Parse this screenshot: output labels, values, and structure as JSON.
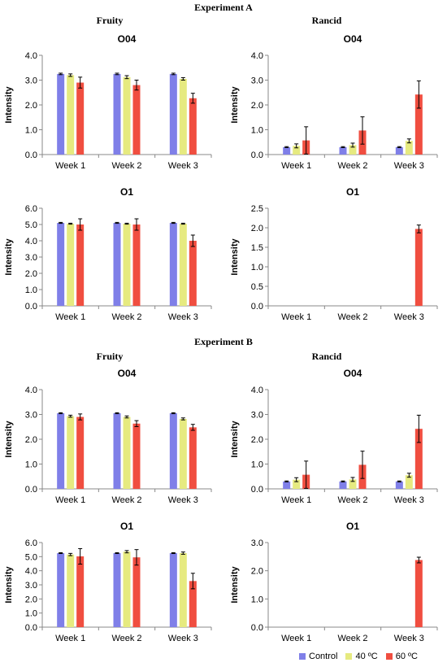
{
  "experiments": [
    {
      "title": "Experiment A",
      "fruity_title": "Fruity",
      "rancid_title": "Rancid"
    },
    {
      "title": "Experiment B",
      "fruity_title": "Fruity",
      "rancid_title": "Rancid"
    }
  ],
  "legend": [
    {
      "label": "Control",
      "color": "#7f7fe8"
    },
    {
      "label": "40 ºC",
      "color": "#e6ea80"
    },
    {
      "label": "60 ºC",
      "color": "#f04e40"
    }
  ],
  "chart_data": [
    {
      "type": "bar",
      "experiment": "Experiment A",
      "attribute": "Fruity",
      "title": "O04",
      "ylabel": "Intensity",
      "ylim": [
        0,
        4
      ],
      "yticks": [
        "0.0",
        "1.0",
        "2.0",
        "3.0",
        "4.0"
      ],
      "categories": [
        "Week 1",
        "Week 2",
        "Week 3"
      ],
      "series": [
        {
          "name": "Control",
          "values": [
            3.25,
            3.25,
            3.25
          ],
          "errors": [
            0.03,
            0.03,
            0.03
          ]
        },
        {
          "name": "40 ºC",
          "values": [
            3.2,
            3.12,
            3.05
          ],
          "errors": [
            0.05,
            0.06,
            0.05
          ]
        },
        {
          "name": "60 ºC",
          "values": [
            2.9,
            2.8,
            2.27
          ],
          "errors": [
            0.22,
            0.2,
            0.2
          ]
        }
      ]
    },
    {
      "type": "bar",
      "experiment": "Experiment A",
      "attribute": "Rancid",
      "title": "O04",
      "ylabel": "Intensity",
      "ylim": [
        0,
        4
      ],
      "yticks": [
        "0.0",
        "1.0",
        "2.0",
        "3.0",
        "4.0"
      ],
      "categories": [
        "Week 1",
        "Week 2",
        "Week 3"
      ],
      "series": [
        {
          "name": "Control",
          "values": [
            0.3,
            0.3,
            0.3
          ],
          "errors": [
            0.02,
            0.02,
            0.02
          ]
        },
        {
          "name": "40 ºC",
          "values": [
            0.35,
            0.38,
            0.55
          ],
          "errors": [
            0.08,
            0.08,
            0.08
          ]
        },
        {
          "name": "60 ºC",
          "values": [
            0.57,
            0.97,
            2.42
          ],
          "errors": [
            0.55,
            0.55,
            0.55
          ]
        }
      ]
    },
    {
      "type": "bar",
      "experiment": "Experiment A",
      "attribute": "Fruity",
      "title": "O1",
      "ylabel": "Intensity",
      "ylim": [
        0,
        6
      ],
      "yticks": [
        "0.0",
        "1.0",
        "2.0",
        "3.0",
        "4.0",
        "5.0",
        "6.0"
      ],
      "categories": [
        "Week 1",
        "Week 2",
        "Week 3"
      ],
      "series": [
        {
          "name": "Control",
          "values": [
            5.1,
            5.1,
            5.1
          ],
          "errors": [
            0.03,
            0.03,
            0.03
          ]
        },
        {
          "name": "40 ºC",
          "values": [
            5.05,
            5.05,
            5.05
          ],
          "errors": [
            0.03,
            0.03,
            0.03
          ]
        },
        {
          "name": "60 ºC",
          "values": [
            5.0,
            5.0,
            4.0
          ],
          "errors": [
            0.35,
            0.35,
            0.35
          ]
        }
      ]
    },
    {
      "type": "bar",
      "experiment": "Experiment A",
      "attribute": "Rancid",
      "title": "O1",
      "ylabel": "Intensity",
      "ylim": [
        0,
        2.5
      ],
      "yticks": [
        "0.0",
        "0.5",
        "1.0",
        "1.5",
        "2.0",
        "2.5"
      ],
      "categories": [
        "Week 1",
        "Week 2",
        "Week 3"
      ],
      "series": [
        {
          "name": "Control",
          "values": [
            0,
            0,
            0
          ],
          "errors": [
            0,
            0,
            0
          ]
        },
        {
          "name": "40 ºC",
          "values": [
            0,
            0,
            0
          ],
          "errors": [
            0,
            0,
            0
          ]
        },
        {
          "name": "60 ºC",
          "values": [
            0,
            0,
            1.97
          ],
          "errors": [
            0,
            0,
            0.1
          ]
        }
      ]
    },
    {
      "type": "bar",
      "experiment": "Experiment B",
      "attribute": "Fruity",
      "title": "O04",
      "ylabel": "Intensity",
      "ylim": [
        0,
        4
      ],
      "yticks": [
        "0.0",
        "1.0",
        "2.0",
        "3.0",
        "4.0"
      ],
      "categories": [
        "Week 1",
        "Week 2",
        "Week 3"
      ],
      "series": [
        {
          "name": "Control",
          "values": [
            3.05,
            3.05,
            3.05
          ],
          "errors": [
            0.02,
            0.02,
            0.02
          ]
        },
        {
          "name": "40 ºC",
          "values": [
            2.93,
            2.9,
            2.82
          ],
          "errors": [
            0.04,
            0.04,
            0.04
          ]
        },
        {
          "name": "60 ºC",
          "values": [
            2.9,
            2.63,
            2.48
          ],
          "errors": [
            0.12,
            0.12,
            0.12
          ]
        }
      ]
    },
    {
      "type": "bar",
      "experiment": "Experiment B",
      "attribute": "Rancid",
      "title": "O04",
      "ylabel": "Intensity",
      "ylim": [
        0,
        4
      ],
      "yticks": [
        "0.0",
        "1.0",
        "2.0",
        "3.0",
        "4.0"
      ],
      "categories": [
        "Week 1",
        "Week 2",
        "Week 3"
      ],
      "series": [
        {
          "name": "Control",
          "values": [
            0.3,
            0.3,
            0.3
          ],
          "errors": [
            0.02,
            0.02,
            0.02
          ]
        },
        {
          "name": "40 ºC",
          "values": [
            0.37,
            0.38,
            0.55
          ],
          "errors": [
            0.08,
            0.08,
            0.08
          ]
        },
        {
          "name": "60 ºC",
          "values": [
            0.57,
            0.97,
            2.42
          ],
          "errors": [
            0.55,
            0.55,
            0.55
          ]
        }
      ]
    },
    {
      "type": "bar",
      "experiment": "Experiment B",
      "attribute": "Fruity",
      "title": "O1",
      "ylabel": "Intensity",
      "ylim": [
        0,
        6
      ],
      "yticks": [
        "0.0",
        "1.0",
        "2.0",
        "3.0",
        "4.0",
        "5.0",
        "6.0"
      ],
      "categories": [
        "Week 1",
        "Week 2",
        "Week 3"
      ],
      "series": [
        {
          "name": "Control",
          "values": [
            5.25,
            5.25,
            5.25
          ],
          "errors": [
            0.03,
            0.03,
            0.03
          ]
        },
        {
          "name": "40 ºC",
          "values": [
            5.15,
            5.35,
            5.25
          ],
          "errors": [
            0.08,
            0.08,
            0.08
          ]
        },
        {
          "name": "60 ºC",
          "values": [
            5.02,
            4.95,
            3.27
          ],
          "errors": [
            0.55,
            0.55,
            0.55
          ]
        }
      ]
    },
    {
      "type": "bar",
      "experiment": "Experiment B",
      "attribute": "Rancid",
      "title": "O1",
      "ylabel": "Intensity",
      "ylim": [
        0,
        3
      ],
      "yticks": [
        "0.0",
        "1.0",
        "2.0",
        "3.0"
      ],
      "categories": [
        "Week 1",
        "Week 2",
        "Week 3"
      ],
      "series": [
        {
          "name": "Control",
          "values": [
            0,
            0,
            0
          ],
          "errors": [
            0,
            0,
            0
          ]
        },
        {
          "name": "40 ºC",
          "values": [
            0,
            0,
            0
          ],
          "errors": [
            0,
            0,
            0
          ]
        },
        {
          "name": "60 ºC",
          "values": [
            0,
            0,
            2.38
          ],
          "errors": [
            0,
            0,
            0.1
          ]
        }
      ]
    }
  ]
}
